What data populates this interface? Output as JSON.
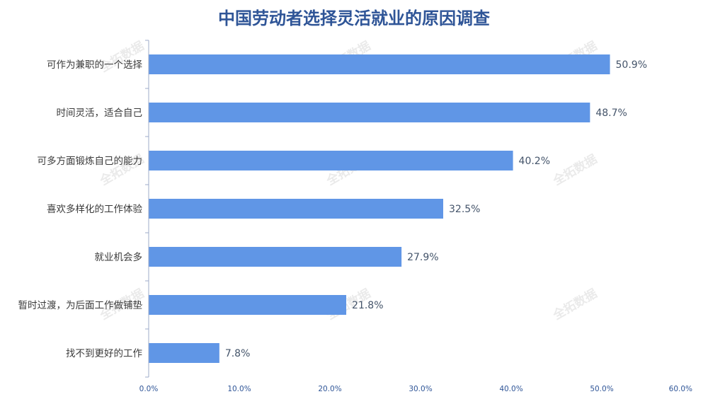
{
  "chart_data": {
    "type": "bar",
    "orientation": "horizontal",
    "title": "中国劳动者选择灵活就业的原因调查",
    "categories": [
      "可作为兼职的一个选择",
      "时间灵活，适合自己",
      "可多方面锻炼自己的能力",
      "喜欢多样化的工作体验",
      "就业机会多",
      "暂时过渡，为后面工作做铺垫",
      "找不到更好的工作"
    ],
    "values": [
      50.9,
      48.7,
      40.2,
      32.5,
      27.9,
      21.8,
      7.8
    ],
    "value_labels": [
      "50.9%",
      "48.7%",
      "40.2%",
      "32.5%",
      "27.9%",
      "21.8%",
      "7.8%"
    ],
    "xlim": [
      0,
      60
    ],
    "x_ticks": [
      0,
      10,
      20,
      30,
      40,
      50,
      60
    ],
    "x_tick_labels": [
      "0.0%",
      "10.0%",
      "20.0%",
      "30.0%",
      "40.0%",
      "50.0%",
      "60.0%"
    ],
    "xlabel": "",
    "ylabel": "",
    "grid": false,
    "legend": "none",
    "bar_color": "#6096e6",
    "title_color": "#2f5597",
    "watermark": "全拓数据"
  }
}
